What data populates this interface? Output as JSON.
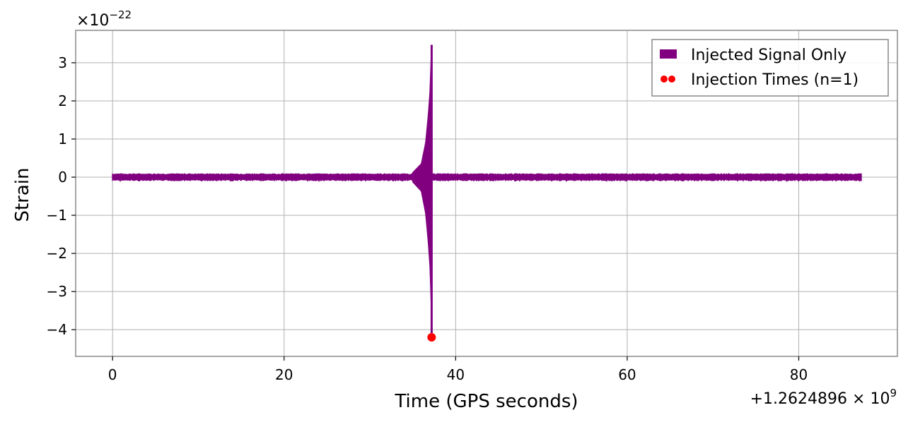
{
  "chart_data": {
    "type": "line",
    "xlabel": "Time (GPS seconds)",
    "ylabel": "Strain",
    "x_offset_label": "+1.2624896 × 10",
    "x_offset_exponent": "9",
    "y_multiplier_label": "×10",
    "y_multiplier_exponent": "−22",
    "xlim": [
      -4.3,
      91.5
    ],
    "ylim": [
      -4.7,
      3.85
    ],
    "x_ticks": [
      0,
      20,
      40,
      60,
      80
    ],
    "x_tick_labels": [
      "0",
      "20",
      "40",
      "60",
      "80"
    ],
    "y_ticks": [
      -4,
      -3,
      -2,
      -1,
      0,
      1,
      2,
      3
    ],
    "y_tick_labels": [
      "−4",
      "−3",
      "−2",
      "−1",
      "0",
      "1",
      "2",
      "3"
    ],
    "grid": true,
    "legend_position": "top-right",
    "series": [
      {
        "name": "Injected Signal Only",
        "color": "#800080",
        "x_range": [
          0,
          87.3
        ],
        "noise_amplitude": 0.09,
        "chirp_peak_time": 37.2,
        "chirp_peak_max": 3.47,
        "chirp_peak_min": -4.2,
        "chirp_envelope": [
          {
            "x": 35.0,
            "y": 0.12
          },
          {
            "x": 36.0,
            "y": 0.35
          },
          {
            "x": 36.5,
            "y": 0.9
          },
          {
            "x": 36.8,
            "y": 1.6
          },
          {
            "x": 37.0,
            "y": 2.2
          },
          {
            "x": 37.2,
            "y": 3.47
          }
        ]
      },
      {
        "name": "Injection Times (n=1)",
        "type": "scatter",
        "color": "#ff0000",
        "points": [
          {
            "x": 37.2,
            "y": -4.2
          }
        ]
      }
    ]
  }
}
